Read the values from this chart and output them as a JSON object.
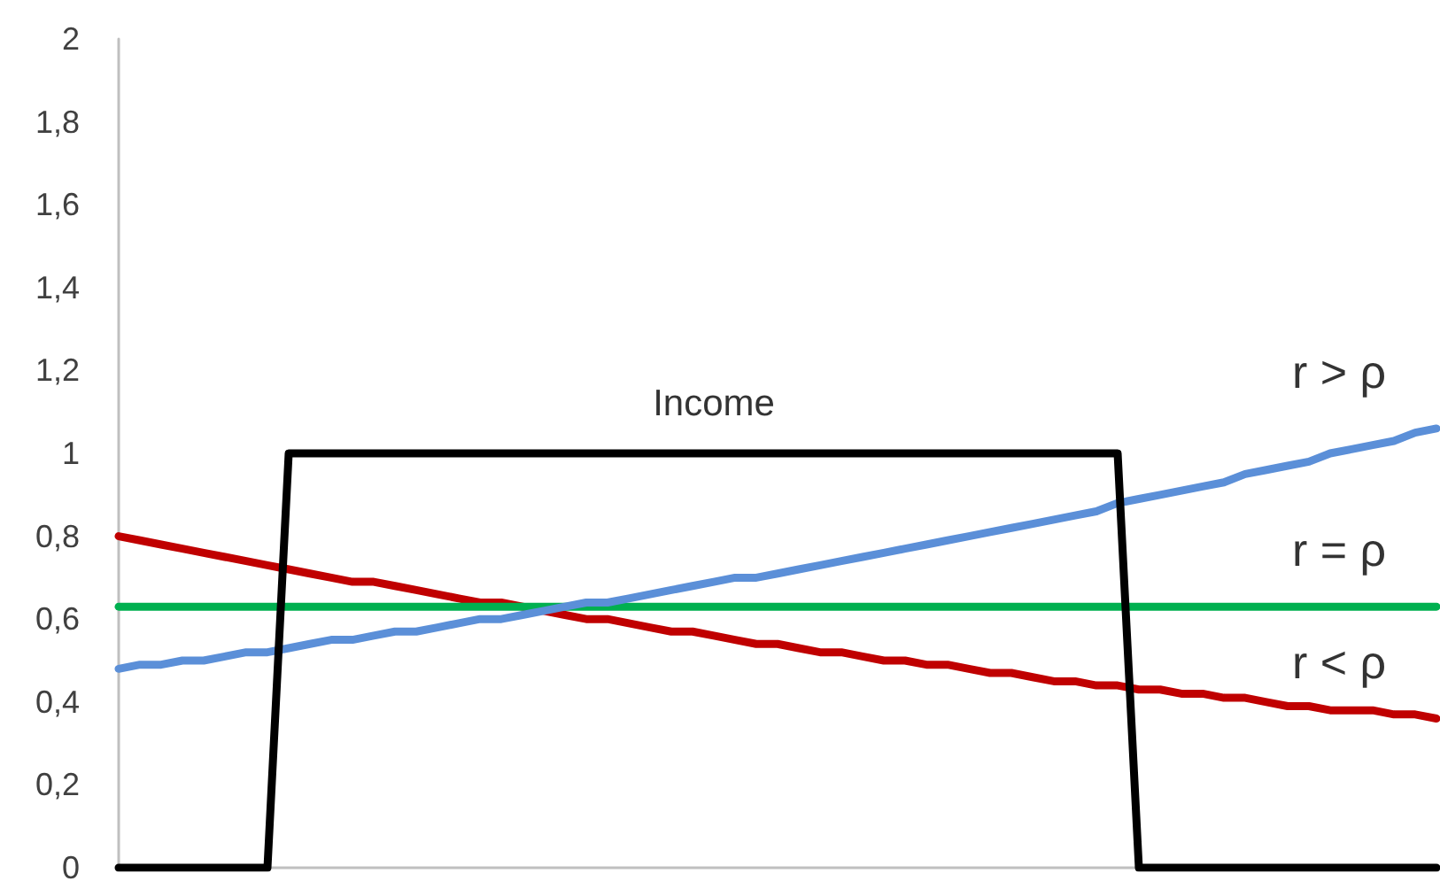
{
  "chart_data": {
    "type": "line",
    "ylim": [
      0,
      2
    ],
    "categories": [
      null,
      null,
      null,
      null,
      null,
      null,
      null,
      null,
      null,
      null,
      null,
      null,
      null,
      null,
      null,
      null,
      null,
      null,
      null,
      null,
      null,
      null,
      null,
      null,
      null,
      null,
      null,
      null,
      null,
      null,
      null,
      null,
      null,
      null,
      null,
      null,
      null,
      null,
      null,
      null,
      null,
      null,
      null,
      null,
      null,
      null,
      null,
      null,
      null,
      null,
      null,
      null,
      null,
      null,
      null,
      null,
      null,
      null,
      null,
      null,
      null,
      null,
      null
    ],
    "yticks": [
      {
        "value": 0,
        "label": "0"
      },
      {
        "value": 0.2,
        "label": "0,2"
      },
      {
        "value": 0.4,
        "label": "0,4"
      },
      {
        "value": 0.6,
        "label": "0,6"
      },
      {
        "value": 0.8,
        "label": "0,8"
      },
      {
        "value": 1,
        "label": "1"
      },
      {
        "value": 1.2,
        "label": "1,2"
      },
      {
        "value": 1.4,
        "label": "1,4"
      },
      {
        "value": 1.6,
        "label": "1,6"
      },
      {
        "value": 1.8,
        "label": "1,8"
      },
      {
        "value": 2,
        "label": "2"
      }
    ],
    "tick_labels": "y",
    "grid": false,
    "legend": false,
    "marker": "none",
    "line_style": "solid",
    "series": [
      {
        "name": "Income",
        "color": "#000000",
        "values": [
          0,
          0,
          0,
          0,
          0,
          0,
          0,
          0,
          1,
          1,
          1,
          1,
          1,
          1,
          1,
          1,
          1,
          1,
          1,
          1,
          1,
          1,
          1,
          1,
          1,
          1,
          1,
          1,
          1,
          1,
          1,
          1,
          1,
          1,
          1,
          1,
          1,
          1,
          1,
          1,
          1,
          1,
          1,
          1,
          1,
          1,
          1,
          1,
          0,
          0,
          0,
          0,
          0,
          0,
          0,
          0,
          0,
          0,
          0,
          0,
          0,
          0,
          0
        ]
      },
      {
        "name": "r > ρ",
        "color": "#5b8fd8",
        "values": [
          0.48,
          0.49,
          0.49,
          0.5,
          0.5,
          0.51,
          0.52,
          0.52,
          0.53,
          0.54,
          0.55,
          0.55,
          0.56,
          0.57,
          0.57,
          0.58,
          0.59,
          0.6,
          0.6,
          0.61,
          0.62,
          0.63,
          0.64,
          0.64,
          0.65,
          0.66,
          0.67,
          0.68,
          0.69,
          0.7,
          0.7,
          0.71,
          0.72,
          0.73,
          0.74,
          0.75,
          0.76,
          0.77,
          0.78,
          0.79,
          0.8,
          0.81,
          0.82,
          0.83,
          0.84,
          0.85,
          0.86,
          0.88,
          0.89,
          0.9,
          0.91,
          0.92,
          0.93,
          0.95,
          0.96,
          0.97,
          0.98,
          1,
          1.01,
          1.02,
          1.03,
          1.05,
          1.06
        ]
      },
      {
        "name": "r = ρ",
        "color": "#00b050",
        "values": [
          0.63,
          0.63,
          0.63,
          0.63,
          0.63,
          0.63,
          0.63,
          0.63,
          0.63,
          0.63,
          0.63,
          0.63,
          0.63,
          0.63,
          0.63,
          0.63,
          0.63,
          0.63,
          0.63,
          0.63,
          0.63,
          0.63,
          0.63,
          0.63,
          0.63,
          0.63,
          0.63,
          0.63,
          0.63,
          0.63,
          0.63,
          0.63,
          0.63,
          0.63,
          0.63,
          0.63,
          0.63,
          0.63,
          0.63,
          0.63,
          0.63,
          0.63,
          0.63,
          0.63,
          0.63,
          0.63,
          0.63,
          0.63,
          0.63,
          0.63,
          0.63,
          0.63,
          0.63,
          0.63,
          0.63,
          0.63,
          0.63,
          0.63,
          0.63,
          0.63,
          0.63,
          0.63,
          0.63
        ]
      },
      {
        "name": "r < ρ",
        "color": "#c00000",
        "values": [
          0.8,
          0.79,
          0.78,
          0.77,
          0.76,
          0.75,
          0.74,
          0.73,
          0.72,
          0.71,
          0.7,
          0.69,
          0.69,
          0.68,
          0.67,
          0.66,
          0.65,
          0.64,
          0.64,
          0.63,
          0.62,
          0.61,
          0.6,
          0.6,
          0.59,
          0.58,
          0.57,
          0.57,
          0.56,
          0.55,
          0.54,
          0.54,
          0.53,
          0.52,
          0.52,
          0.51,
          0.5,
          0.5,
          0.49,
          0.49,
          0.48,
          0.47,
          0.47,
          0.46,
          0.45,
          0.45,
          0.44,
          0.44,
          0.43,
          0.43,
          0.42,
          0.42,
          0.41,
          0.41,
          0.4,
          0.39,
          0.39,
          0.38,
          0.38,
          0.38,
          0.37,
          0.37,
          0.36
        ]
      }
    ]
  }
}
